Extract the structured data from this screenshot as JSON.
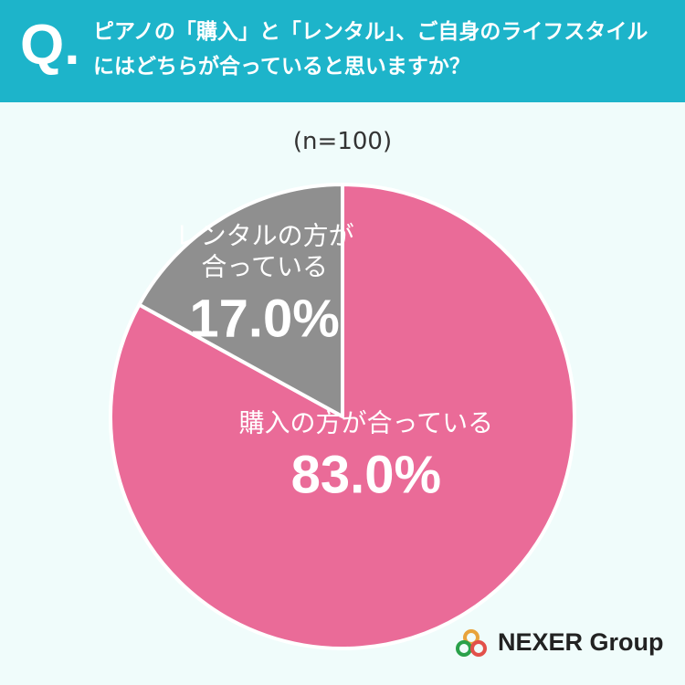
{
  "question_label": "Q.",
  "chart_data": {
    "type": "pie",
    "title": "ピアノの「購入」と「レンタル」、ご自身のライフスタイルにはどちらが合っていると思いますか？",
    "subtitle": "(n=100)",
    "categories": [
      "購入の方が合っている",
      "レンタルの方が合っている"
    ],
    "values": [
      83.0,
      17.0
    ],
    "value_labels": [
      "83.0%",
      "17.0%"
    ],
    "colors": [
      "#ea6b98",
      "#8f8f8f"
    ]
  },
  "logo": "NEXER Group"
}
